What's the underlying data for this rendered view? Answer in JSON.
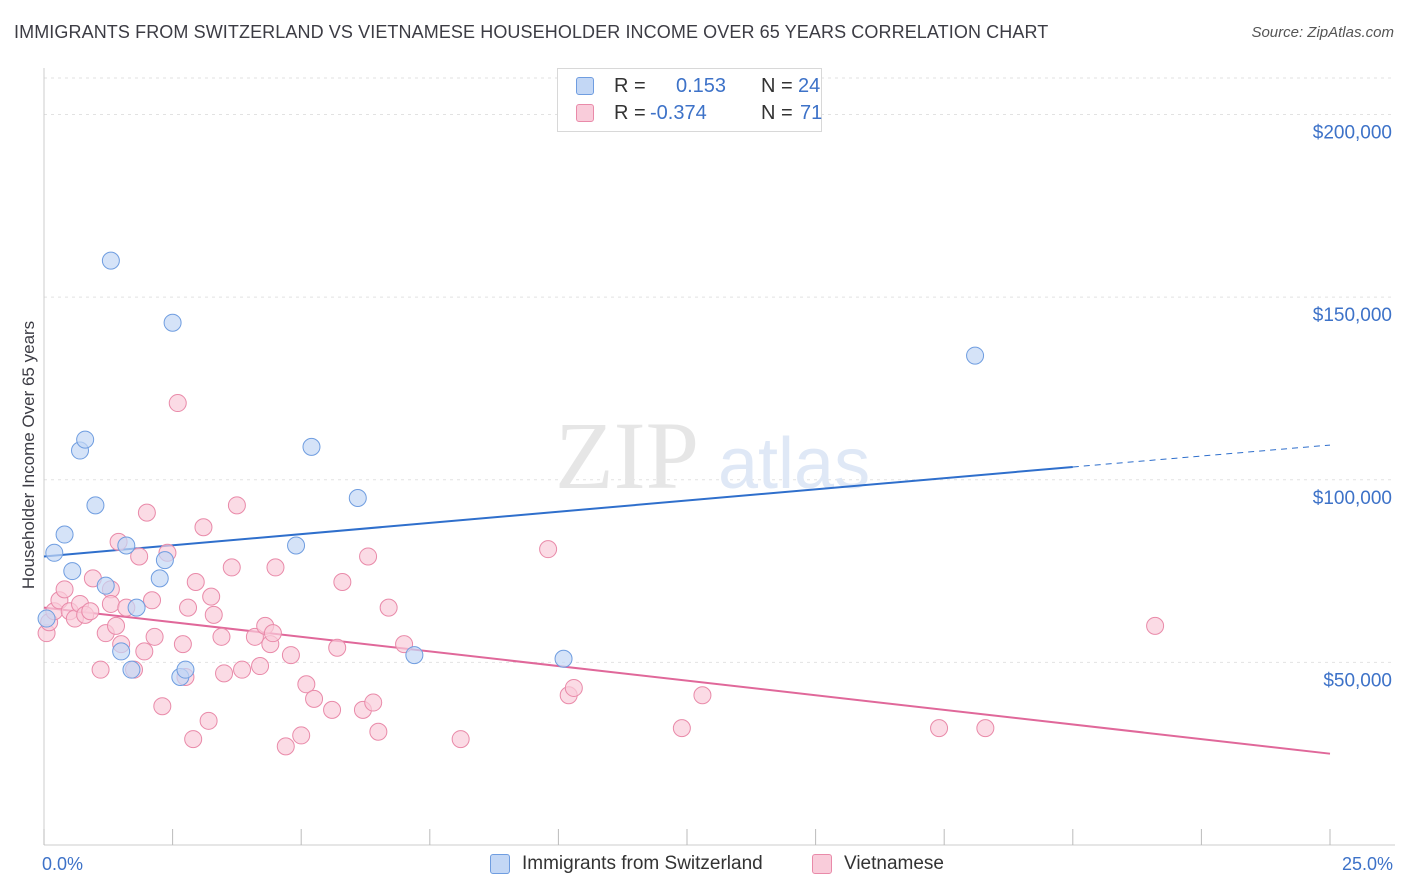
{
  "header": {
    "title": "IMMIGRANTS FROM SWITZERLAND VS VIETNAMESE HOUSEHOLDER INCOME OVER 65 YEARS CORRELATION CHART",
    "source": "Source: ZipAtlas.com"
  },
  "watermark": {
    "zip": "ZIP",
    "atlas": "atlas"
  },
  "colors": {
    "blue_fill": "#c3d7f5",
    "blue_stroke": "#6f9de0",
    "blue_line": "#2f6fcc",
    "pink_fill": "#f9ccda",
    "pink_stroke": "#e98aa9",
    "pink_line": "#e0689a",
    "grid": "#e2e2e2",
    "label_blue": "#3d72c8"
  },
  "legend": {
    "rows": [
      {
        "r_label": "R =",
        "r_value": "0.153",
        "n_label": "N =",
        "n_value": "24"
      },
      {
        "r_label": "R =",
        "r_value": "-0.374",
        "n_label": "N =",
        "n_value": "71"
      }
    ]
  },
  "bottom_legend": {
    "series1": "Immigrants from Switzerland",
    "series2": "Vietnamese"
  },
  "chart_data": {
    "type": "scatter",
    "title": "IMMIGRANTS FROM SWITZERLAND VS VIETNAMESE HOUSEHOLDER INCOME OVER 65 YEARS CORRELATION CHART",
    "xlabel": "",
    "ylabel": "Householder Income Over 65 years",
    "xlim": [
      0,
      25
    ],
    "ylim": [
      0,
      210000
    ],
    "x_tick_labels": [
      "0.0%",
      "25.0%"
    ],
    "y_ticks": [
      50000,
      100000,
      150000,
      200000
    ],
    "y_tick_labels": [
      "$50,000",
      "$100,000",
      "$150,000",
      "$200,000"
    ],
    "series": [
      {
        "name": "Immigrants from Switzerland",
        "r": 0.153,
        "n": 24,
        "trend": {
          "x0": 0,
          "y0": 79000,
          "x1": 20,
          "y1": 103500,
          "x_dash_end": 25,
          "y_dash_end": 109500
        },
        "points": [
          [
            0.05,
            62000
          ],
          [
            0.2,
            80000
          ],
          [
            0.4,
            85000
          ],
          [
            0.55,
            75000
          ],
          [
            0.7,
            108000
          ],
          [
            0.8,
            111000
          ],
          [
            1.0,
            93000
          ],
          [
            1.2,
            71000
          ],
          [
            1.3,
            160000
          ],
          [
            1.5,
            53000
          ],
          [
            1.6,
            82000
          ],
          [
            1.7,
            48000
          ],
          [
            1.8,
            65000
          ],
          [
            2.25,
            73000
          ],
          [
            2.35,
            78000
          ],
          [
            2.5,
            143000
          ],
          [
            2.65,
            46000
          ],
          [
            2.75,
            48000
          ],
          [
            4.9,
            82000
          ],
          [
            5.2,
            109000
          ],
          [
            6.1,
            95000
          ],
          [
            7.2,
            52000
          ],
          [
            10.1,
            51000
          ],
          [
            18.1,
            134000
          ]
        ]
      },
      {
        "name": "Vietnamese",
        "r": -0.374,
        "n": 71,
        "trend": {
          "x0": 0,
          "y0": 65000,
          "x1": 25,
          "y1": 25000
        },
        "points": [
          [
            0.05,
            58000
          ],
          [
            0.1,
            61000
          ],
          [
            0.2,
            64000
          ],
          [
            0.3,
            67000
          ],
          [
            0.4,
            70000
          ],
          [
            0.5,
            64000
          ],
          [
            0.6,
            62000
          ],
          [
            0.7,
            66000
          ],
          [
            0.8,
            63000
          ],
          [
            0.9,
            64000
          ],
          [
            0.95,
            73000
          ],
          [
            1.1,
            48000
          ],
          [
            1.2,
            58000
          ],
          [
            1.3,
            70000
          ],
          [
            1.3,
            66000
          ],
          [
            1.4,
            60000
          ],
          [
            1.45,
            83000
          ],
          [
            1.5,
            55000
          ],
          [
            1.6,
            65000
          ],
          [
            1.75,
            48000
          ],
          [
            1.85,
            79000
          ],
          [
            1.95,
            53000
          ],
          [
            2.0,
            91000
          ],
          [
            2.1,
            67000
          ],
          [
            2.15,
            57000
          ],
          [
            2.3,
            38000
          ],
          [
            2.4,
            80000
          ],
          [
            2.6,
            121000
          ],
          [
            2.7,
            55000
          ],
          [
            2.75,
            46000
          ],
          [
            2.8,
            65000
          ],
          [
            2.9,
            29000
          ],
          [
            2.95,
            72000
          ],
          [
            3.1,
            87000
          ],
          [
            3.2,
            34000
          ],
          [
            3.25,
            68000
          ],
          [
            3.3,
            63000
          ],
          [
            3.45,
            57000
          ],
          [
            3.5,
            47000
          ],
          [
            3.65,
            76000
          ],
          [
            3.75,
            93000
          ],
          [
            3.85,
            48000
          ],
          [
            4.1,
            57000
          ],
          [
            4.2,
            49000
          ],
          [
            4.3,
            60000
          ],
          [
            4.4,
            55000
          ],
          [
            4.45,
            58000
          ],
          [
            4.5,
            76000
          ],
          [
            4.7,
            27000
          ],
          [
            4.8,
            52000
          ],
          [
            5.0,
            30000
          ],
          [
            5.1,
            44000
          ],
          [
            5.25,
            40000
          ],
          [
            5.6,
            37000
          ],
          [
            5.7,
            54000
          ],
          [
            5.8,
            72000
          ],
          [
            6.2,
            37000
          ],
          [
            6.3,
            79000
          ],
          [
            6.4,
            39000
          ],
          [
            6.5,
            31000
          ],
          [
            6.7,
            65000
          ],
          [
            7.0,
            55000
          ],
          [
            8.1,
            29000
          ],
          [
            9.8,
            81000
          ],
          [
            10.2,
            41000
          ],
          [
            10.3,
            43000
          ],
          [
            12.4,
            32000
          ],
          [
            12.8,
            41000
          ],
          [
            17.4,
            32000
          ],
          [
            18.3,
            32000
          ],
          [
            21.6,
            60000
          ]
        ]
      }
    ]
  }
}
